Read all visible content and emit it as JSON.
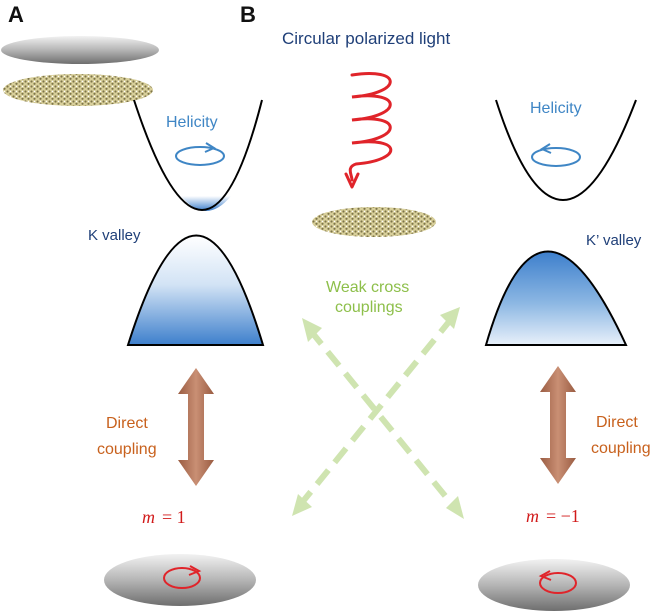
{
  "panels": {
    "a": "A",
    "b": "B"
  },
  "title": "Circular polarized light",
  "left": {
    "helicity": "Helicity",
    "valley": "K valley",
    "coupling_line1": "Direct",
    "coupling_line2": "coupling",
    "m_label": "m",
    "m_eq": "= 1"
  },
  "right": {
    "helicity": "Helicity",
    "valley": "K’ valley",
    "coupling_line1": "Direct",
    "coupling_line2": "coupling",
    "m_label": "m",
    "m_eq": "= −1"
  },
  "center": {
    "cross_line1": "Weak cross",
    "cross_line2": "couplings"
  },
  "colors": {
    "band_blue": "#3d7fcc",
    "arrow_brown": "#b9785a",
    "cross_green": "#cfe4b0",
    "helix_red": "#e0242a",
    "disk_gray": "#8f8f8f"
  }
}
